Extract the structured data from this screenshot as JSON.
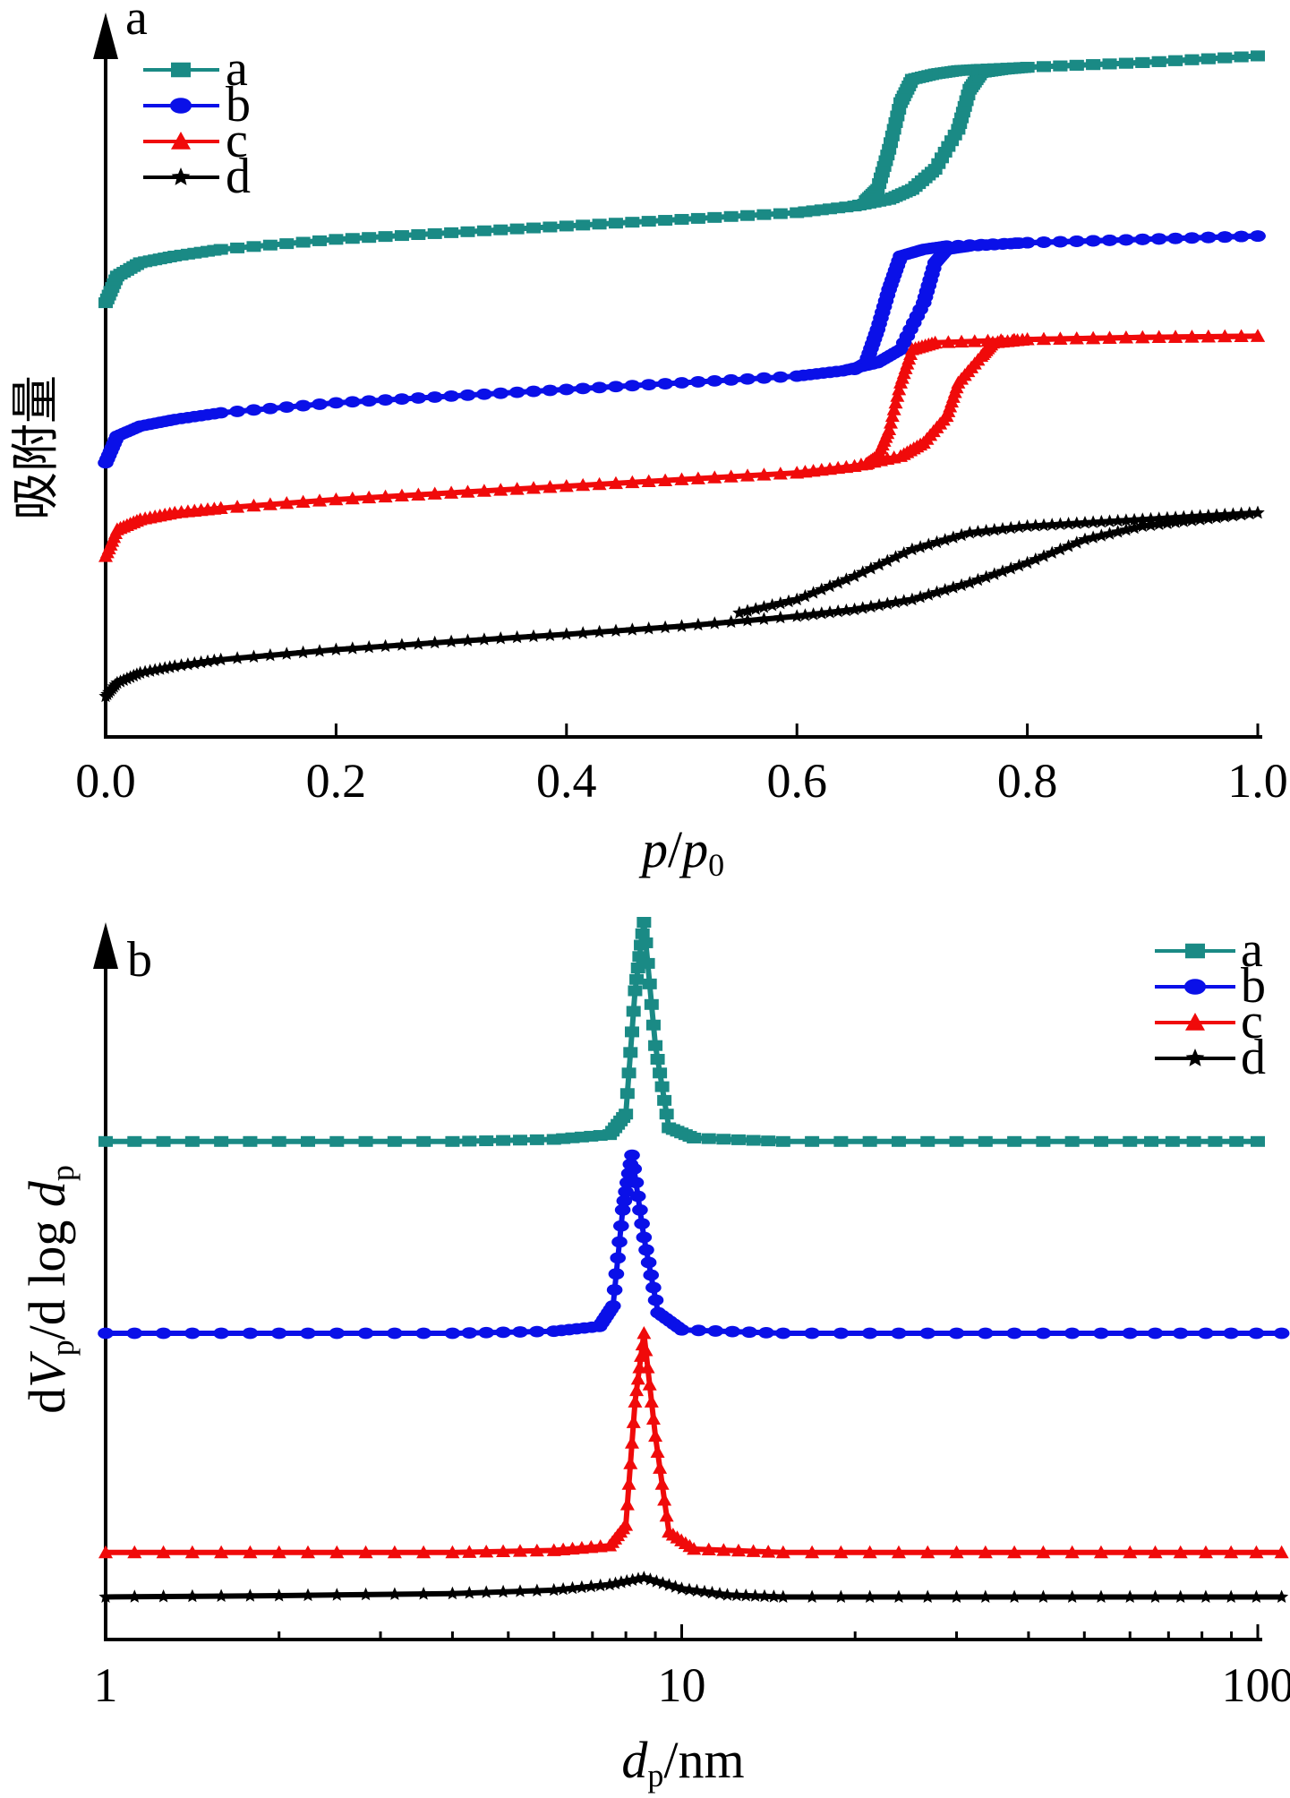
{
  "chart_data": [
    {
      "type": "line",
      "panel_label": "a",
      "xlabel_italic": "p",
      "xlabel_mid": "/",
      "xlabel_italic2": "p",
      "xlabel_sub": "0",
      "ylabel": "吸附量",
      "xlim": [
        0.0,
        1.0
      ],
      "ylim": [
        0,
        100
      ],
      "xticks": [
        0.0,
        0.2,
        0.4,
        0.6,
        0.8,
        1.0
      ],
      "xtick_labels": [
        "0.0",
        "0.2",
        "0.4",
        "0.6",
        "0.8",
        "1.0"
      ],
      "legend_position": "top-left",
      "series": [
        {
          "name": "a",
          "color": "#1a8a85",
          "marker": "square",
          "adsorption": {
            "x": [
              0.0,
              0.01,
              0.03,
              0.06,
              0.1,
              0.2,
              0.3,
              0.4,
              0.5,
              0.6,
              0.65,
              0.68,
              0.7,
              0.72,
              0.74,
              0.75,
              0.76,
              0.78,
              0.8,
              0.9,
              1.0
            ],
            "y": [
              62,
              66,
              68,
              69,
              70,
              71.5,
              72.5,
              73.5,
              74.5,
              75.5,
              76.5,
              77.5,
              79,
              82,
              88,
              94,
              96.5,
              97,
              97.3,
              98,
              99
            ]
          },
          "desorption": {
            "x": [
              1.0,
              0.9,
              0.8,
              0.76,
              0.74,
              0.72,
              0.7,
              0.69,
              0.68,
              0.67,
              0.66
            ],
            "y": [
              99,
              98,
              97.3,
              97,
              96.8,
              96.3,
              95.5,
              92,
              85,
              79,
              77.3
            ]
          }
        },
        {
          "name": "b",
          "color": "#0a10e8",
          "marker": "circle",
          "adsorption": {
            "x": [
              0.0,
              0.01,
              0.03,
              0.06,
              0.1,
              0.2,
              0.3,
              0.4,
              0.5,
              0.6,
              0.64,
              0.67,
              0.69,
              0.71,
              0.72,
              0.73,
              0.75,
              0.8,
              0.9,
              1.0
            ],
            "y": [
              38,
              42,
              43.5,
              44.5,
              45.5,
              47,
              48,
              49,
              50,
              51,
              51.8,
              53,
              55,
              62,
              68,
              70,
              70.5,
              71,
              71.5,
              72
            ]
          },
          "desorption": {
            "x": [
              1.0,
              0.9,
              0.8,
              0.73,
              0.71,
              0.69,
              0.68,
              0.67,
              0.66,
              0.65
            ],
            "y": [
              72,
              71.5,
              71,
              70.5,
              70,
              69,
              64,
              58,
              53,
              52
            ]
          }
        },
        {
          "name": "c",
          "color": "#f00a0a",
          "marker": "triangle",
          "adsorption": {
            "x": [
              0.0,
              0.01,
              0.03,
              0.06,
              0.1,
              0.2,
              0.3,
              0.4,
              0.5,
              0.6,
              0.65,
              0.69,
              0.71,
              0.73,
              0.74,
              0.76,
              0.77,
              0.8,
              0.9,
              1.0
            ],
            "y": [
              24,
              28,
              29.5,
              30.5,
              31.2,
              32.5,
              33.5,
              34.5,
              35.5,
              36.5,
              37.5,
              39,
              41,
              45,
              50,
              54,
              56,
              56.5,
              56.8,
              57
            ]
          },
          "desorption": {
            "x": [
              1.0,
              0.9,
              0.8,
              0.72,
              0.7,
              0.69,
              0.68,
              0.67,
              0.66
            ],
            "y": [
              57,
              56.8,
              56.5,
              56,
              55,
              50,
              43,
              39,
              37.8
            ]
          }
        },
        {
          "name": "d",
          "color": "#000000",
          "marker": "star",
          "adsorption": {
            "x": [
              0.0,
              0.01,
              0.03,
              0.06,
              0.1,
              0.2,
              0.3,
              0.4,
              0.5,
              0.6,
              0.65,
              0.7,
              0.75,
              0.8,
              0.85,
              0.9,
              0.95,
              1.0
            ],
            "y": [
              3,
              5,
              6.5,
              7.5,
              8.5,
              10,
              11.2,
              12.3,
              13.5,
              15,
              16,
              17.5,
              20,
              23,
              26.5,
              28.5,
              29.5,
              30.5
            ]
          },
          "desorption": {
            "x": [
              1.0,
              0.95,
              0.9,
              0.85,
              0.8,
              0.75,
              0.7,
              0.65,
              0.6,
              0.55
            ],
            "y": [
              30.5,
              30,
              29.5,
              29,
              28.5,
              27.5,
              25,
              21,
              17.5,
              15.5
            ]
          }
        }
      ]
    },
    {
      "type": "line",
      "panel_label": "b",
      "xlabel_italic": "d",
      "xlabel_sub": "p",
      "xlabel_rest": "/nm",
      "ylabel_pre": "d",
      "ylabel_italic": "V",
      "ylabel_sub": "p",
      "ylabel_mid": "/d log ",
      "ylabel_italic2": "d",
      "ylabel_sub2": "p",
      "xscale": "log",
      "xlim": [
        1,
        100
      ],
      "ylim": [
        0,
        100
      ],
      "xticks": [
        1,
        10,
        100
      ],
      "xtick_labels": [
        "1",
        "10",
        "100"
      ],
      "legend_position": "top-right",
      "series": [
        {
          "name": "a",
          "color": "#1a8a85",
          "marker": "square",
          "x": [
            1,
            2,
            4,
            6,
            7.5,
            8.0,
            8.3,
            8.6,
            9.0,
            9.5,
            10.5,
            15,
            30,
            60,
            100
          ],
          "y": [
            68,
            68,
            68,
            68.3,
            69,
            72,
            90,
            100,
            82,
            70,
            68.5,
            68,
            68,
            68,
            68
          ]
        },
        {
          "name": "b",
          "color": "#0a10e8",
          "marker": "circle",
          "x": [
            1,
            2,
            4,
            6,
            7.2,
            7.6,
            7.9,
            8.2,
            8.6,
            9.1,
            10,
            15,
            30,
            60,
            110
          ],
          "y": [
            40,
            40,
            40,
            40.3,
            41,
            44,
            58,
            66,
            54,
            43,
            40.5,
            40,
            40,
            40,
            40
          ]
        },
        {
          "name": "c",
          "color": "#f00a0a",
          "marker": "triangle",
          "x": [
            1,
            2,
            4,
            6,
            7.5,
            8.0,
            8.3,
            8.6,
            9.0,
            9.5,
            10.5,
            15,
            30,
            60,
            110
          ],
          "y": [
            8,
            8,
            8,
            8.3,
            9,
            12,
            30,
            40,
            25,
            11,
            8.5,
            8,
            8,
            8,
            8
          ]
        },
        {
          "name": "d",
          "color": "#000000",
          "marker": "star",
          "x": [
            1,
            2,
            4,
            6,
            7.5,
            8.6,
            10,
            12,
            15,
            30,
            60,
            110
          ],
          "y": [
            1.5,
            1.7,
            2,
            2.5,
            3.3,
            4.3,
            2.7,
            1.8,
            1.5,
            1.5,
            1.5,
            1.5
          ]
        }
      ]
    }
  ]
}
